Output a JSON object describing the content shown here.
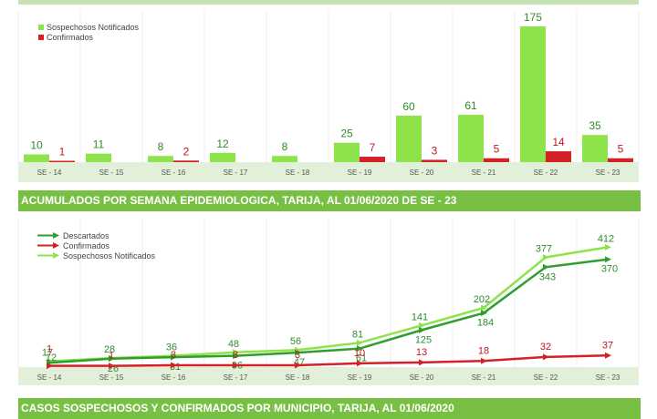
{
  "charts": [
    {
      "type": "bar",
      "categories": [
        "SE - 14",
        "SE - 15",
        "SE - 16",
        "SE - 17",
        "SE - 18",
        "SE - 19",
        "SE - 20",
        "SE - 21",
        "SE - 22",
        "SE - 23"
      ],
      "series": [
        {
          "name": "Sospechosos Notificados",
          "color": "#8fe34a",
          "values": [
            10,
            11,
            8,
            12,
            8,
            25,
            60,
            61,
            175,
            35
          ]
        },
        {
          "name": "Confirmados",
          "color": "#d42127",
          "values": [
            1,
            null,
            2,
            null,
            null,
            7,
            3,
            5,
            14,
            5
          ]
        }
      ],
      "ylim": [
        0,
        175
      ],
      "legend_position": "top-left",
      "grid": true
    },
    {
      "type": "line",
      "categories": [
        "SE - 14",
        "SE - 15",
        "SE - 16",
        "SE - 17",
        "SE - 18",
        "SE - 19",
        "SE - 20",
        "SE - 21",
        "SE - 22",
        "SE - 23"
      ],
      "series": [
        {
          "name": "Descartados",
          "color": "#2f9e2f",
          "values": [
            12,
            26,
            31,
            36,
            47,
            61,
            125,
            184,
            343,
            370
          ]
        },
        {
          "name": "Confirmados",
          "color": "#d42127",
          "values": [
            1,
            1,
            3,
            3,
            3,
            10,
            13,
            18,
            32,
            37
          ]
        },
        {
          "name": "Sospechosos Notificados",
          "color": "#8fe34a",
          "values": [
            17,
            28,
            36,
            48,
            56,
            81,
            141,
            202,
            377,
            412
          ]
        }
      ],
      "ylim": [
        0,
        412
      ],
      "legend_position": "top-left",
      "grid": true
    }
  ],
  "banners": {
    "first": "ACUMULADOS POR SEMANA EPIDEMIOLOGICA, TARIJA, AL 01/06/2020 DE SE - 23",
    "second": "CASOS SOSPECHOSOS Y CONFIRMADOS POR MUNICIPIO, TARIJA, AL 01/06/2020"
  },
  "colors": {
    "axis_band": "#e2f0d9",
    "banner": "#78c043",
    "grid": "#ececec",
    "label_green": "#2e8b2e",
    "label_red": "#c0181f"
  }
}
